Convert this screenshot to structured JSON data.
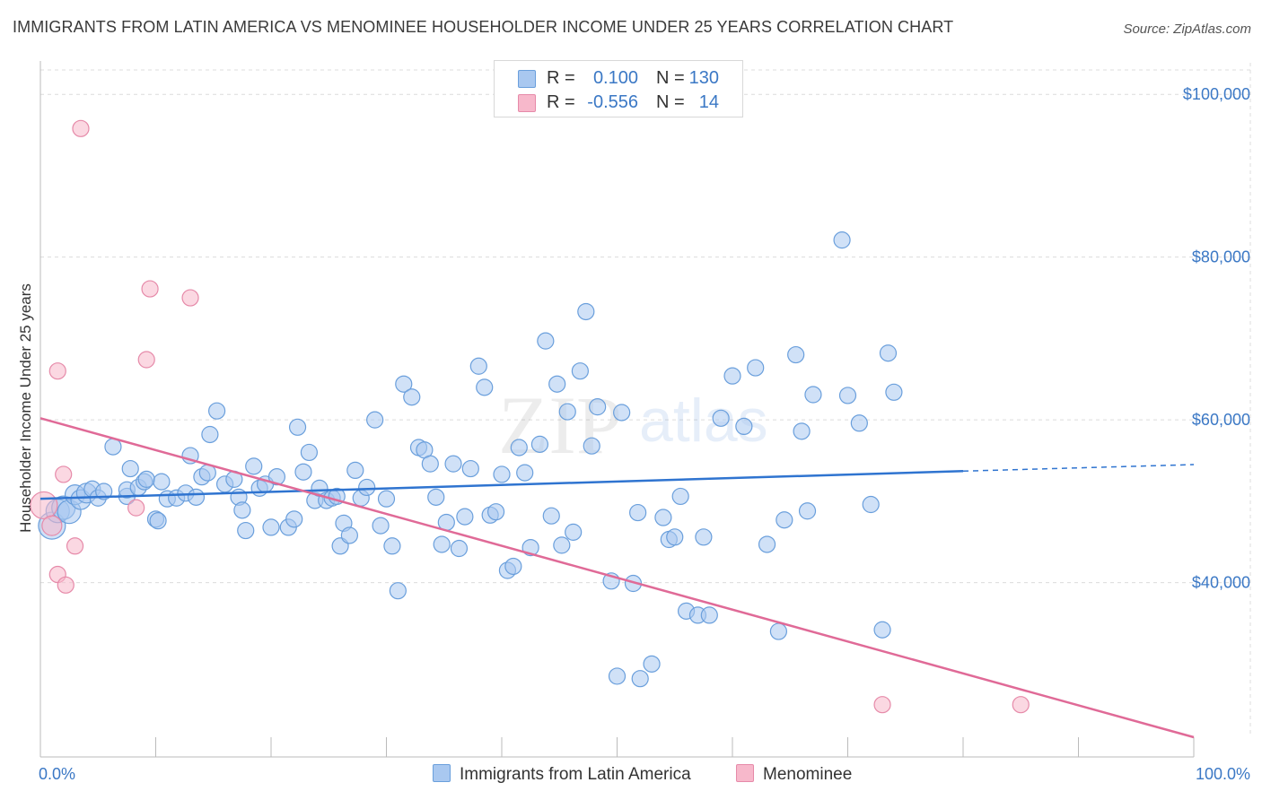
{
  "title": "IMMIGRANTS FROM LATIN AMERICA VS MENOMINEE HOUSEHOLDER INCOME UNDER 25 YEARS CORRELATION CHART",
  "source": "Source: ZipAtlas.com",
  "watermark": {
    "part1": "ZIP",
    "part2": "atlas"
  },
  "colors": {
    "blue_fill": "#a9c8f0",
    "blue_stroke": "#6a9fdc",
    "blue_line": "#2f74d0",
    "pink_fill": "#f7b8cb",
    "pink_stroke": "#e68aa9",
    "pink_line": "#e06a97",
    "tick_text": "#3b78c5",
    "grid": "#dcdcdc"
  },
  "legend": {
    "rows": [
      {
        "swatch": "blue",
        "r_label": "R =",
        "r_value": "0.100",
        "n_label": "N =",
        "n_value": "130"
      },
      {
        "swatch": "pink",
        "r_label": "R =",
        "r_value": "-0.556",
        "n_label": "N =",
        "n_value": "14"
      }
    ]
  },
  "bottom_legend": [
    "Immigrants from Latin America",
    "Menominee"
  ],
  "chart_data": {
    "type": "scatter",
    "title": "IMMIGRANTS FROM LATIN AMERICA VS MENOMINEE HOUSEHOLDER INCOME UNDER 25 YEARS CORRELATION CHART",
    "xlabel": "",
    "ylabel": "Householder Income Under 25 years",
    "xlim": [
      0,
      100
    ],
    "ylim": [
      21000,
      103000
    ],
    "x_tick_labels": [
      "0.0%",
      "100.0%"
    ],
    "y_ticks": [
      40000,
      60000,
      80000,
      100000
    ],
    "y_tick_labels": [
      "$40,000",
      "$60,000",
      "$80,000",
      "$100,000"
    ],
    "grid": "horizontal dashed",
    "legend_position": "top-center",
    "series": [
      {
        "name": "Immigrants from Latin America",
        "color": "#a9c8f0",
        "trend": {
          "x": [
            0,
            80
          ],
          "y": [
            50300,
            53700
          ],
          "dashed_extension": {
            "x": [
              80,
              100
            ],
            "y": [
              53700,
              54500
            ]
          }
        },
        "points": [
          [
            1,
            47000,
            4
          ],
          [
            1.5,
            48800,
            3
          ],
          [
            2,
            49200,
            3
          ],
          [
            2.5,
            48700,
            3
          ],
          [
            3,
            50800,
            2
          ],
          [
            3.5,
            50200,
            2
          ],
          [
            4,
            51000,
            2
          ],
          [
            4.5,
            51500,
            1
          ],
          [
            5,
            50400,
            1
          ],
          [
            5.5,
            51200,
            1
          ],
          [
            6.3,
            56700,
            1
          ],
          [
            7.5,
            50600,
            1
          ],
          [
            7.5,
            51400,
            1
          ],
          [
            7.8,
            54000,
            1
          ],
          [
            8.5,
            51700,
            1
          ],
          [
            9,
            52400,
            1
          ],
          [
            9.2,
            52700,
            1
          ],
          [
            10,
            47800,
            1
          ],
          [
            10.2,
            47600,
            1
          ],
          [
            10.5,
            52400,
            1
          ],
          [
            11,
            50300,
            1
          ],
          [
            11.8,
            50400,
            1
          ],
          [
            12.6,
            51000,
            1
          ],
          [
            13,
            55600,
            1
          ],
          [
            13.5,
            50500,
            1
          ],
          [
            14,
            53000,
            1
          ],
          [
            14.5,
            53500,
            1
          ],
          [
            14.7,
            58200,
            1
          ],
          [
            15.3,
            61100,
            1
          ],
          [
            16,
            52100,
            1
          ],
          [
            16.8,
            52700,
            1
          ],
          [
            17.2,
            50500,
            1
          ],
          [
            17.5,
            48900,
            1
          ],
          [
            17.8,
            46400,
            1
          ],
          [
            18.5,
            54300,
            1
          ],
          [
            19,
            51600,
            1
          ],
          [
            19.5,
            52100,
            1
          ],
          [
            20,
            46800,
            1
          ],
          [
            20.5,
            53000,
            1
          ],
          [
            21.5,
            46800,
            1
          ],
          [
            22,
            47800,
            1
          ],
          [
            22.3,
            59100,
            1
          ],
          [
            22.8,
            53600,
            1
          ],
          [
            23.3,
            56000,
            1
          ],
          [
            23.8,
            50100,
            1
          ],
          [
            24.2,
            51600,
            1
          ],
          [
            24.8,
            50100,
            1
          ],
          [
            25.3,
            50400,
            1
          ],
          [
            25.7,
            50600,
            1
          ],
          [
            26,
            44500,
            1
          ],
          [
            26.3,
            47300,
            1
          ],
          [
            26.8,
            45800,
            1
          ],
          [
            27.3,
            53800,
            1
          ],
          [
            27.8,
            50400,
            1
          ],
          [
            28.3,
            51700,
            1
          ],
          [
            29,
            60000,
            1
          ],
          [
            29.5,
            47000,
            1
          ],
          [
            30,
            50300,
            1
          ],
          [
            30.5,
            44500,
            1
          ],
          [
            31,
            39000,
            1
          ],
          [
            31.5,
            64400,
            1
          ],
          [
            32.2,
            62800,
            1
          ],
          [
            32.8,
            56600,
            1
          ],
          [
            33.3,
            56300,
            1
          ],
          [
            33.8,
            54600,
            1
          ],
          [
            34.3,
            50500,
            1
          ],
          [
            34.8,
            44700,
            1
          ],
          [
            35.2,
            47400,
            1
          ],
          [
            35.8,
            54600,
            1
          ],
          [
            36.3,
            44200,
            1
          ],
          [
            36.8,
            48100,
            1
          ],
          [
            37.3,
            54000,
            1
          ],
          [
            38,
            66600,
            1
          ],
          [
            38.5,
            64000,
            1
          ],
          [
            39,
            48300,
            1
          ],
          [
            39.5,
            48700,
            1
          ],
          [
            40,
            53300,
            1
          ],
          [
            40.5,
            41500,
            1
          ],
          [
            41,
            42000,
            1
          ],
          [
            41.5,
            56600,
            1
          ],
          [
            42,
            53500,
            1
          ],
          [
            42.5,
            44300,
            1
          ],
          [
            43.3,
            57000,
            1
          ],
          [
            43.8,
            69700,
            1
          ],
          [
            44.3,
            48200,
            1
          ],
          [
            44.8,
            64400,
            1
          ],
          [
            45.2,
            44600,
            1
          ],
          [
            45.7,
            61000,
            1
          ],
          [
            46.2,
            46200,
            1
          ],
          [
            46.8,
            66000,
            1
          ],
          [
            47.3,
            73300,
            1
          ],
          [
            47.8,
            56800,
            1
          ],
          [
            48.3,
            61600,
            1
          ],
          [
            49.5,
            40200,
            1
          ],
          [
            50,
            28500,
            1
          ],
          [
            50.4,
            60900,
            1
          ],
          [
            51.4,
            39900,
            1
          ],
          [
            51.8,
            48600,
            1
          ],
          [
            52,
            28200,
            1
          ],
          [
            53,
            30000,
            1
          ],
          [
            54,
            48000,
            1
          ],
          [
            54.5,
            45300,
            1
          ],
          [
            55,
            45600,
            1
          ],
          [
            55.5,
            50600,
            1
          ],
          [
            56,
            36500,
            1
          ],
          [
            57,
            36000,
            1
          ],
          [
            57.5,
            45600,
            1
          ],
          [
            58,
            36000,
            1
          ],
          [
            59,
            60200,
            1
          ],
          [
            60,
            65400,
            1
          ],
          [
            61,
            59200,
            1
          ],
          [
            62,
            66400,
            1
          ],
          [
            63,
            44700,
            1
          ],
          [
            64,
            34000,
            1
          ],
          [
            64.5,
            47700,
            1
          ],
          [
            65.5,
            68000,
            1
          ],
          [
            66,
            58600,
            1
          ],
          [
            66.5,
            48800,
            1
          ],
          [
            67,
            63100,
            1
          ],
          [
            69.5,
            82100,
            1
          ],
          [
            70,
            63000,
            1
          ],
          [
            71,
            59600,
            1
          ],
          [
            72,
            49600,
            1
          ],
          [
            73,
            34200,
            1
          ],
          [
            73.5,
            68200,
            1
          ],
          [
            74,
            63400,
            1
          ]
        ]
      },
      {
        "name": "Menominee",
        "color": "#f7b8cb",
        "trend": {
          "x": [
            0,
            100
          ],
          "y": [
            60200,
            21000
          ]
        },
        "points": [
          [
            0.3,
            49500,
            4
          ],
          [
            1,
            47000,
            2
          ],
          [
            1.5,
            41000,
            1
          ],
          [
            1.5,
            66000,
            1
          ],
          [
            2,
            53300,
            1
          ],
          [
            2.2,
            39700,
            1
          ],
          [
            3,
            44500,
            1
          ],
          [
            3.5,
            95800,
            1
          ],
          [
            8.3,
            49200,
            1
          ],
          [
            9.2,
            67400,
            1
          ],
          [
            9.5,
            76100,
            1
          ],
          [
            13,
            75000,
            1
          ],
          [
            73,
            25000,
            1
          ],
          [
            85,
            25000,
            1
          ]
        ]
      }
    ]
  }
}
